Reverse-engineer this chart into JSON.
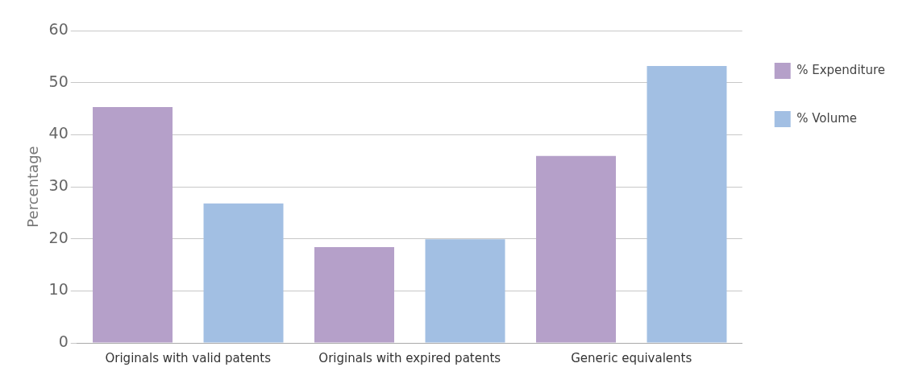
{
  "chart_data": {
    "type": "bar",
    "ylabel": "Percentage",
    "categories": [
      "Originals with valid patents",
      "Originals with expired patents",
      "Generic equivalents"
    ],
    "series": [
      {
        "name": "% Expenditure",
        "color": "#b5a0c9",
        "values": [
          45.3,
          18.4,
          35.9
        ]
      },
      {
        "name": "% Volume",
        "color": "#a2bfe3",
        "values": [
          26.8,
          19.9,
          53.2
        ]
      }
    ],
    "ylim": [
      0,
      60
    ],
    "yticks": [
      0,
      10,
      20,
      30,
      40,
      50,
      60
    ],
    "grid": "y",
    "legend": "top right"
  }
}
